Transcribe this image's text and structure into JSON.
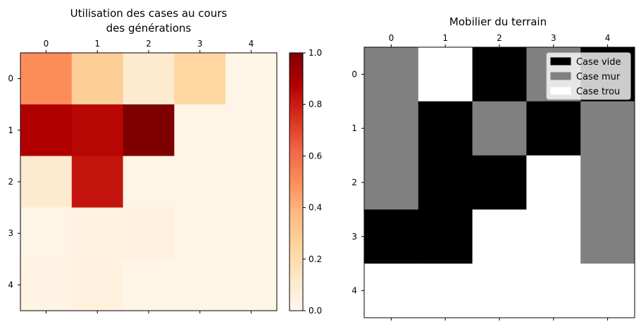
{
  "chart_data": [
    {
      "type": "heatmap",
      "title_lines": [
        "Utilisation des cases au cours",
        "des générations"
      ],
      "x_ticks": [
        "0",
        "1",
        "2",
        "3",
        "4"
      ],
      "y_ticks": [
        "0",
        "1",
        "2",
        "3",
        "4"
      ],
      "x_tick_position": "top",
      "colormap": "OrRd",
      "clim": [
        0,
        1
      ],
      "colorbar_ticks": [
        "0.0",
        "0.2",
        "0.4",
        "0.6",
        "0.8",
        "1.0"
      ],
      "values": [
        [
          0.5,
          0.28,
          0.1,
          0.24,
          0.02
        ],
        [
          0.88,
          0.86,
          1.0,
          0.02,
          0.02
        ],
        [
          0.1,
          0.82,
          0.02,
          0.02,
          0.02
        ],
        [
          0.02,
          0.04,
          0.05,
          0.02,
          0.02
        ],
        [
          0.03,
          0.05,
          0.02,
          0.02,
          0.02
        ]
      ]
    },
    {
      "type": "heatmap",
      "title": "Mobilier du terrain",
      "x_ticks": [
        "0",
        "1",
        "2",
        "3",
        "4"
      ],
      "y_ticks": [
        "0",
        "1",
        "2",
        "3",
        "4"
      ],
      "x_tick_position": "top",
      "categories": [
        "Case vide",
        "Case mur",
        "Case trou"
      ],
      "category_colors": [
        "#000000",
        "#808080",
        "#ffffff"
      ],
      "grid": [
        [
          1,
          2,
          0,
          1,
          0
        ],
        [
          1,
          0,
          1,
          0,
          1
        ],
        [
          1,
          0,
          0,
          2,
          1
        ],
        [
          0,
          0,
          2,
          2,
          1
        ],
        [
          2,
          2,
          2,
          2,
          2
        ]
      ],
      "legend": {
        "placement": "top-right",
        "entries": [
          {
            "label": "Case vide",
            "color": "#000000"
          },
          {
            "label": "Case mur",
            "color": "#808080"
          },
          {
            "label": "Case trou",
            "color": "#ffffff"
          }
        ]
      }
    }
  ]
}
